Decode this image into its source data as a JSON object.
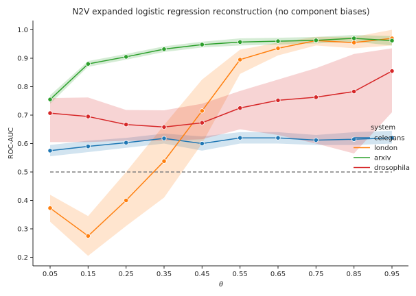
{
  "chart_data": {
    "type": "line",
    "title": "N2V expanded logistic regression reconstruction (no component biases)",
    "xlabel": "θ",
    "ylabel": "ROC-AUC",
    "x": [
      0.05,
      0.15,
      0.25,
      0.35,
      0.45,
      0.55,
      0.65,
      0.75,
      0.85,
      0.95
    ],
    "x_tick_labels": [
      "0.05",
      "0.15",
      "0.25",
      "0.35",
      "0.45",
      "0.55",
      "0.65",
      "0.75",
      "0.85",
      "0.95"
    ],
    "y_ticks": [
      "0.2",
      "0.3",
      "0.4",
      "0.5",
      "0.6",
      "0.7",
      "0.8",
      "0.9",
      "1.0"
    ],
    "ylim": [
      0.18,
      1.035
    ],
    "grid": false,
    "legend_title": "system",
    "legend_position": "right",
    "reference_line": {
      "y": 0.5,
      "style": "dashed",
      "color": "#808080"
    },
    "series": [
      {
        "name": "celegans",
        "color": "#1f77b4",
        "values": [
          0.575,
          0.59,
          0.603,
          0.618,
          0.6,
          0.62,
          0.62,
          0.612,
          0.615,
          0.62
        ],
        "ci_low": [
          0.555,
          0.57,
          0.585,
          0.6,
          0.575,
          0.6,
          0.6,
          0.595,
          0.595,
          0.6
        ],
        "ci_high": [
          0.595,
          0.61,
          0.62,
          0.635,
          0.625,
          0.64,
          0.64,
          0.63,
          0.64,
          0.645
        ]
      },
      {
        "name": "london",
        "color": "#ff7f0e",
        "values": [
          0.373,
          0.275,
          0.4,
          0.538,
          0.715,
          0.895,
          0.935,
          0.962,
          0.955,
          0.97
        ],
        "ci_low": [
          0.325,
          0.205,
          0.31,
          0.41,
          0.6,
          0.845,
          0.91,
          0.945,
          0.935,
          0.945
        ],
        "ci_high": [
          0.42,
          0.345,
          0.5,
          0.665,
          0.825,
          0.93,
          0.955,
          0.975,
          0.975,
          1.0
        ]
      },
      {
        "name": "arxiv",
        "color": "#2ca02c",
        "values": [
          0.755,
          0.88,
          0.905,
          0.932,
          0.948,
          0.957,
          0.96,
          0.963,
          0.97,
          0.962
        ],
        "ci_low": [
          0.74,
          0.87,
          0.895,
          0.922,
          0.938,
          0.945,
          0.948,
          0.952,
          0.958,
          0.945
        ],
        "ci_high": [
          0.77,
          0.89,
          0.915,
          0.942,
          0.958,
          0.97,
          0.972,
          0.975,
          0.982,
          0.978
        ]
      },
      {
        "name": "drosophila",
        "color": "#d62728",
        "values": [
          0.707,
          0.695,
          0.667,
          0.658,
          0.673,
          0.725,
          0.752,
          0.763,
          0.783,
          0.855
        ],
        "ci_low": [
          0.605,
          0.605,
          0.61,
          0.61,
          0.615,
          0.65,
          0.63,
          0.6,
          0.565,
          0.71
        ],
        "ci_high": [
          0.76,
          0.762,
          0.718,
          0.717,
          0.74,
          0.785,
          0.825,
          0.865,
          0.915,
          0.935
        ]
      }
    ]
  }
}
